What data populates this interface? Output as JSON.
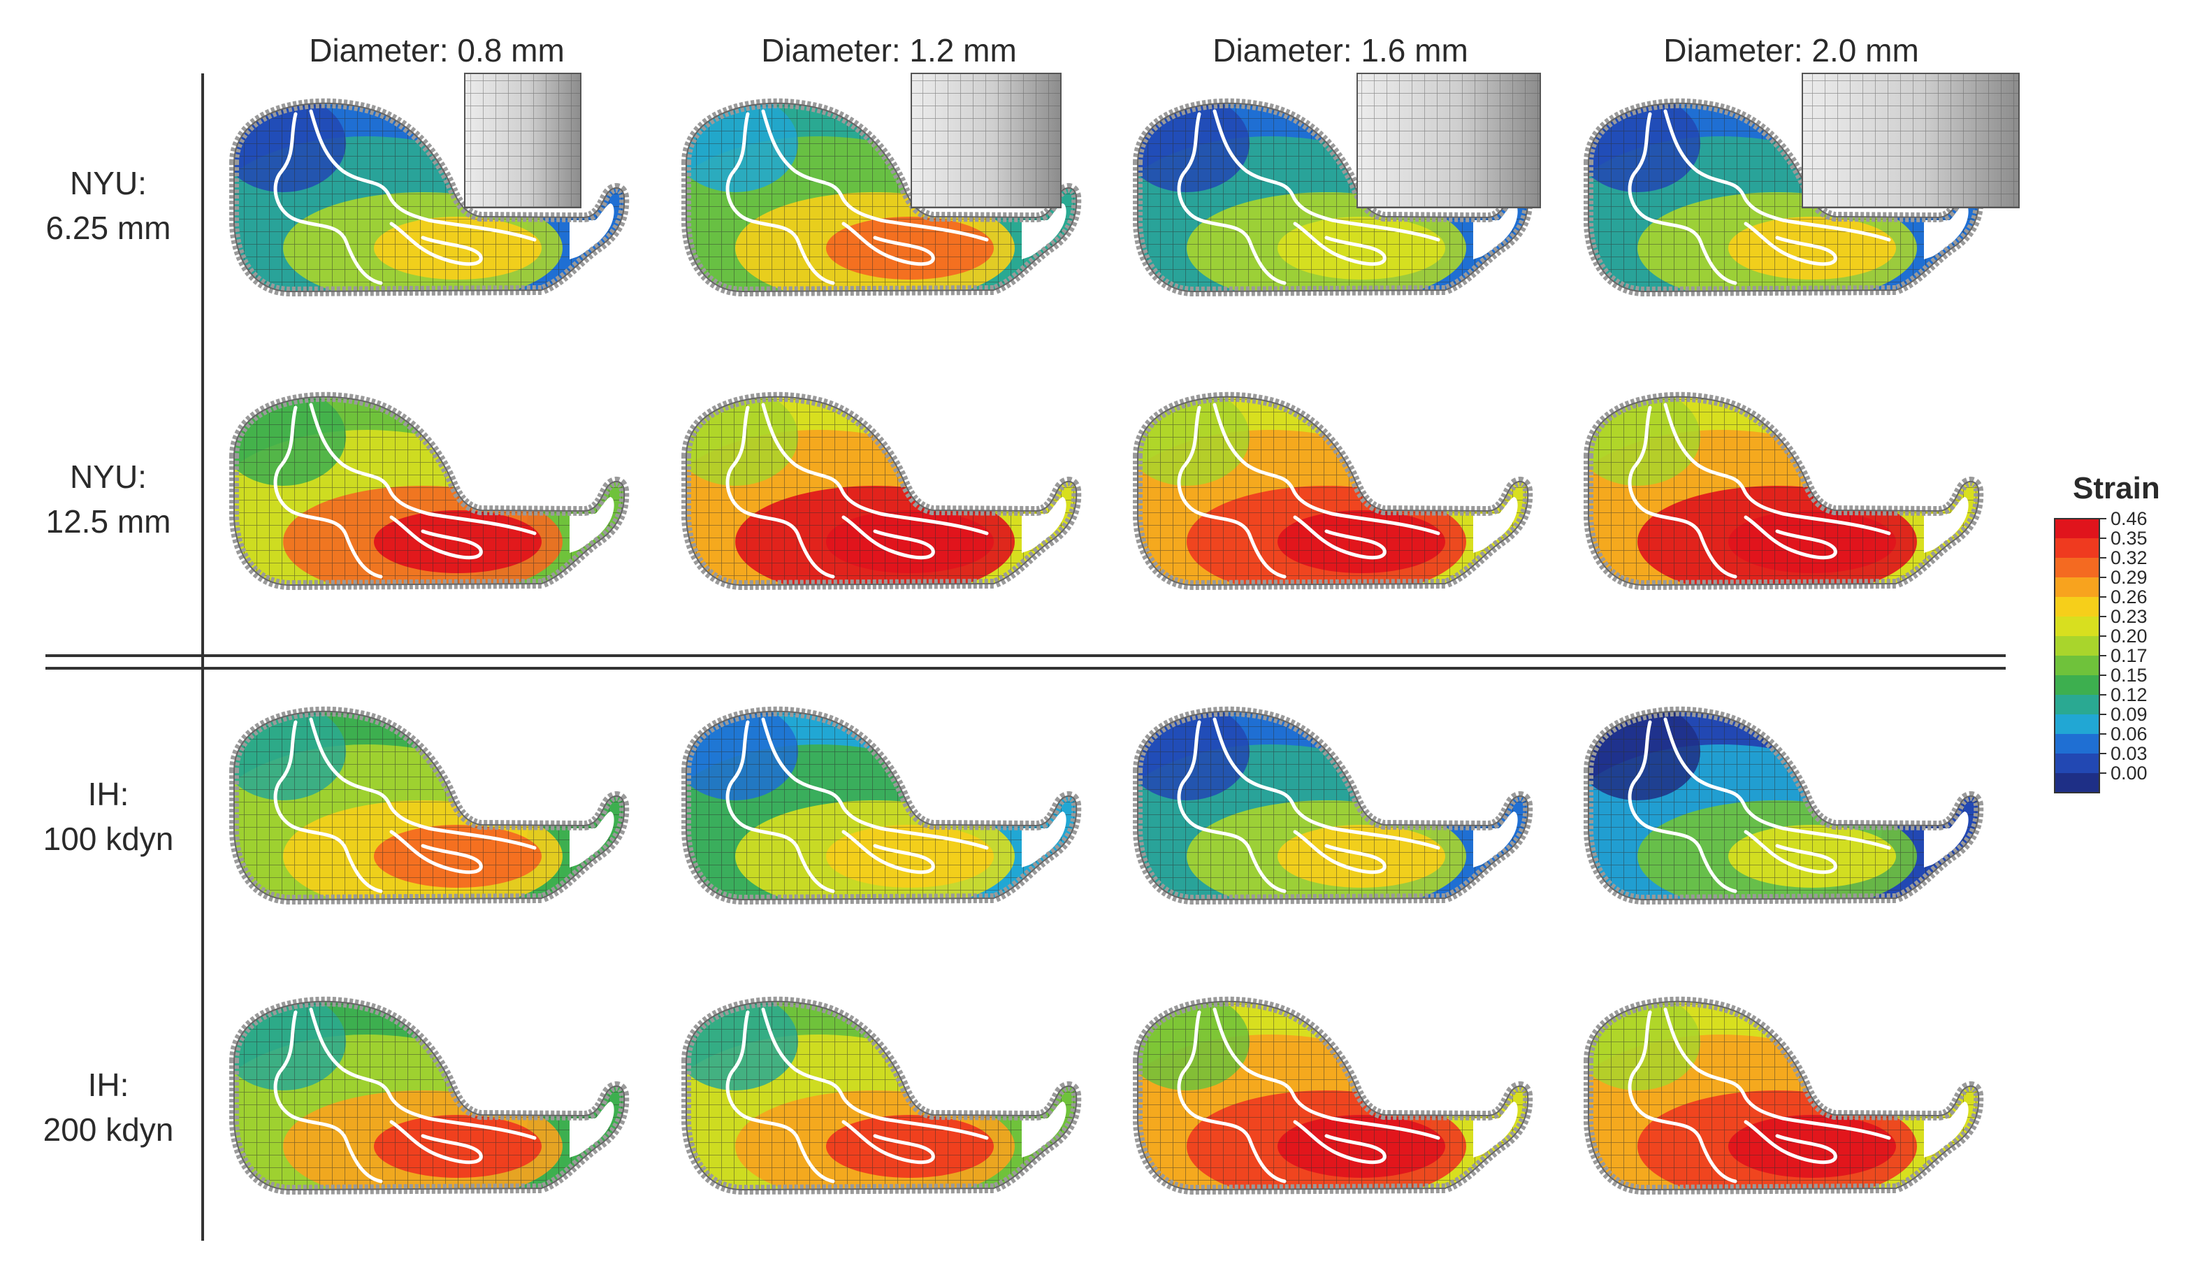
{
  "columns": [
    {
      "label": "Diameter: 0.8 mm",
      "indenter": 0.8
    },
    {
      "label": "Diameter: 1.2 mm",
      "indenter": 1.2
    },
    {
      "label": "Diameter: 1.6 mm",
      "indenter": 1.6
    },
    {
      "label": "Diameter: 2.0 mm",
      "indenter": 2.0
    }
  ],
  "rows": [
    {
      "line1": "NYU:",
      "line2": "6.25 mm",
      "level": [
        0.42,
        0.58,
        0.4,
        0.42
      ],
      "show_indenter": true
    },
    {
      "line1": "NYU:",
      "line2": "12.5 mm",
      "level": [
        0.72,
        0.88,
        0.86,
        0.88
      ],
      "show_indenter": false
    },
    {
      "line1": "IH:",
      "line2": "100 kdyn",
      "level": [
        0.62,
        0.48,
        0.44,
        0.34
      ],
      "show_indenter": false
    },
    {
      "line1": "IH:",
      "line2": "200 kdyn",
      "level": [
        0.66,
        0.68,
        0.84,
        0.86
      ],
      "show_indenter": false
    }
  ],
  "legend": {
    "title": "Strain",
    "ticks": [
      "0.46",
      "0.35",
      "0.32",
      "0.29",
      "0.26",
      "0.23",
      "0.20",
      "0.17",
      "0.15",
      "0.12",
      "0.09",
      "0.06",
      "0.03",
      "0.00"
    ],
    "colors": [
      "#e0141c",
      "#ef3a1f",
      "#f46a21",
      "#f8a31e",
      "#f6cf1a",
      "#d8df1f",
      "#a9d52c",
      "#6fc23b",
      "#3daf4f",
      "#2aa992",
      "#21a7d4",
      "#1f6fd3",
      "#2248b3",
      "#1e2f86"
    ]
  },
  "colors": {
    "mesh_line": "#2b2b2b",
    "boundary": "#9a9a9a",
    "contour": "#ffffff",
    "indenter_light": "#e4e4e4",
    "indenter_dark": "#8c8c8c"
  }
}
